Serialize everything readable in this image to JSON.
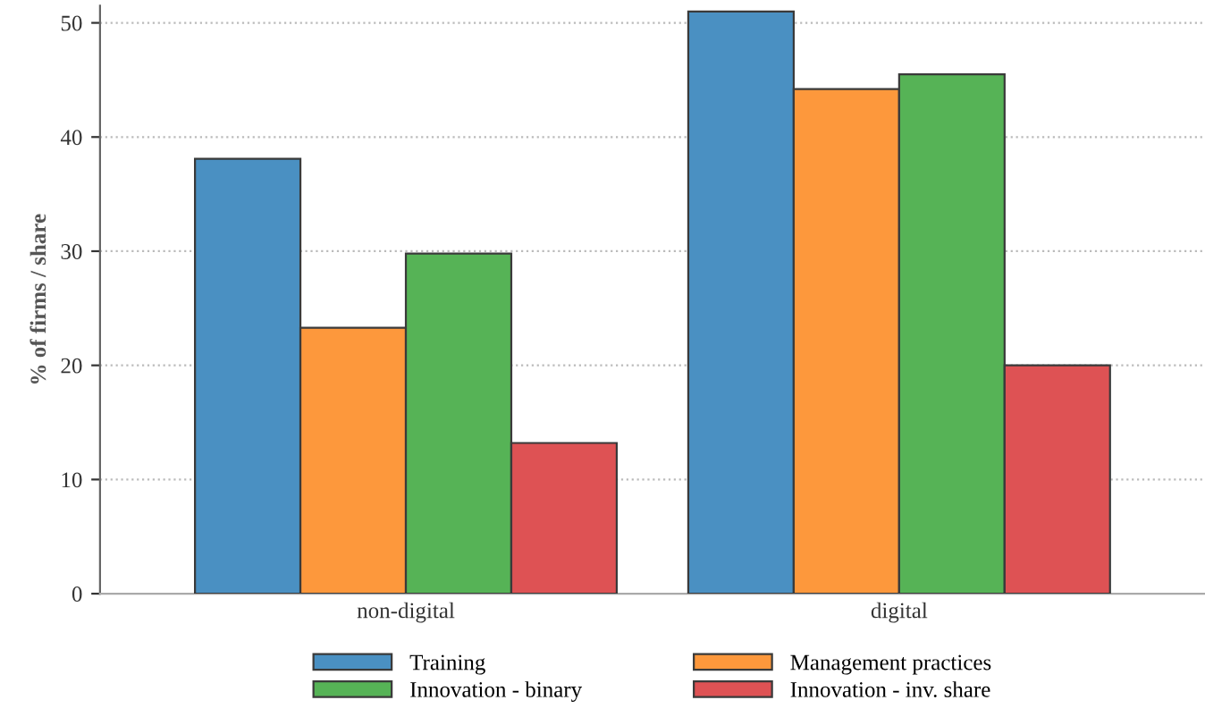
{
  "chart_data": {
    "type": "bar",
    "ylabel": "% of firms / share",
    "categories": [
      "non-digital",
      "digital"
    ],
    "series": [
      {
        "name": "Training",
        "color": "#4a90c2",
        "values": [
          38.1,
          51.0
        ]
      },
      {
        "name": "Management practices",
        "color": "#fd983c",
        "values": [
          23.3,
          44.2
        ]
      },
      {
        "name": "Innovation - binary",
        "color": "#56b356",
        "values": [
          29.8,
          45.5
        ]
      },
      {
        "name": "Innovation - inv. share",
        "color": "#de5254",
        "values": [
          13.2,
          20.0
        ]
      }
    ],
    "ylim": [
      0,
      51.5
    ],
    "yticks": [
      0,
      10,
      20,
      30,
      40,
      50
    ],
    "grid": "y",
    "legend": "bottom"
  }
}
